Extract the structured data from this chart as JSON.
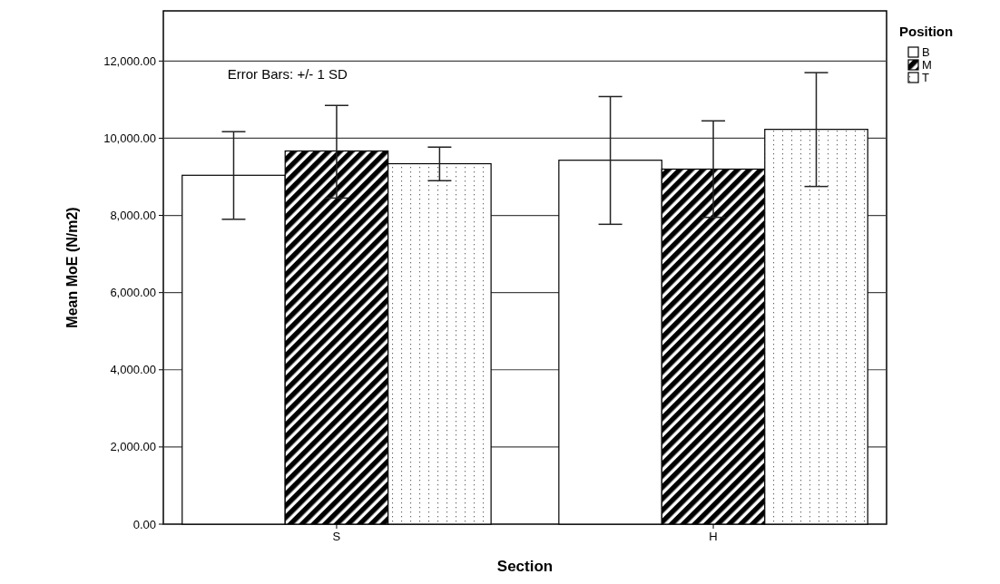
{
  "chart_data": {
    "type": "bar",
    "xlabel": "Section",
    "ylabel": "Mean MoE (N/m2)",
    "legend_title": "Position",
    "categories": [
      "S",
      "H"
    ],
    "series": [
      {
        "name": "B",
        "color": "#ffffff",
        "values": [
          9040,
          9430
        ],
        "errors": [
          [
            7900,
            10170
          ],
          [
            7770,
            11080
          ]
        ]
      },
      {
        "name": "M",
        "color": "#000000",
        "values": [
          9670,
          9200
        ],
        "errors": [
          [
            8450,
            10850
          ],
          [
            7950,
            10450
          ]
        ]
      },
      {
        "name": "T",
        "color": "#000000",
        "values": [
          9340,
          10230
        ],
        "errors": [
          [
            8900,
            9770
          ],
          [
            8750,
            11700
          ]
        ]
      }
    ],
    "ylim": [
      0,
      13300
    ],
    "yticks": [
      {
        "value": 0,
        "label": "0.00"
      },
      {
        "value": 2000,
        "label": "2,000.00"
      },
      {
        "value": 4000,
        "label": "4,000.00"
      },
      {
        "value": 6000,
        "label": "6,000.00"
      },
      {
        "value": 8000,
        "label": "8,000.00"
      },
      {
        "value": 10000,
        "label": "10,000.00"
      },
      {
        "value": 12000,
        "label": "12,000.00"
      }
    ],
    "grid": "y",
    "legend": "top right",
    "annotations": [
      "Error Bars: +/- 1 SD"
    ]
  }
}
